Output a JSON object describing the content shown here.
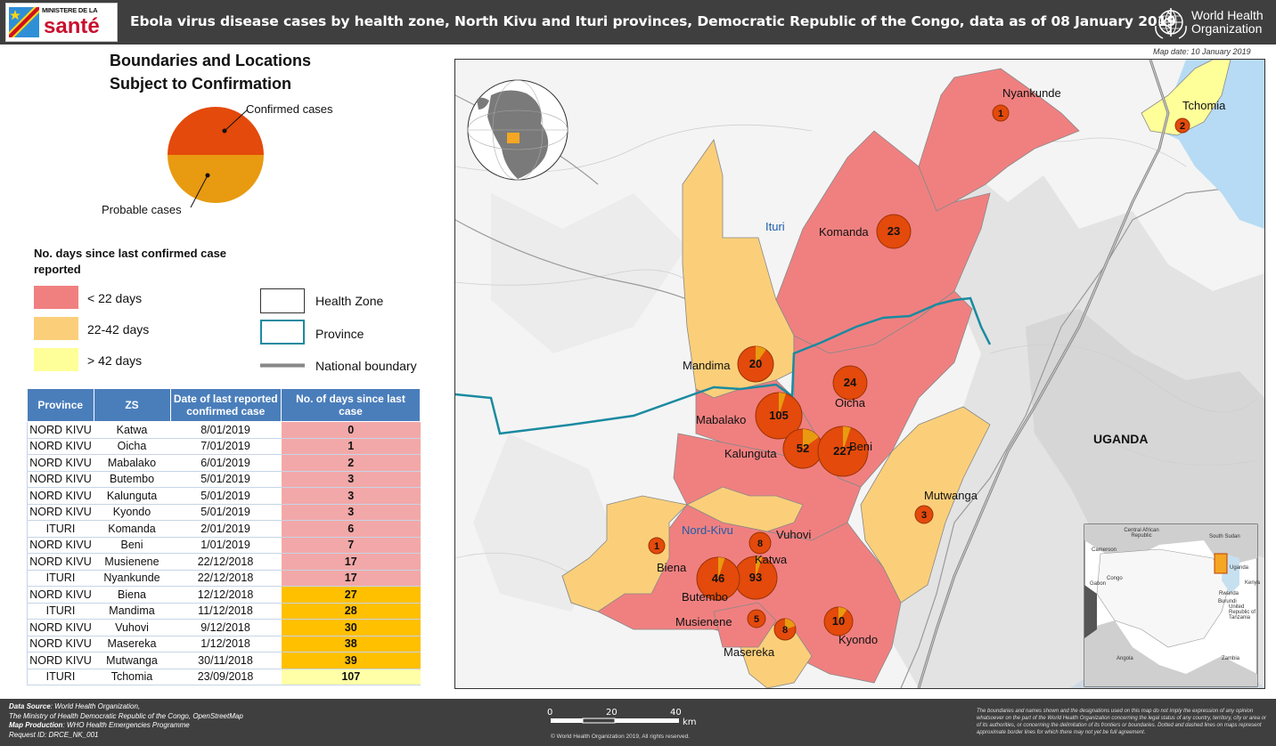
{
  "header": {
    "ministry_line": "MINISTERE DE LA",
    "ministry_word": "santé",
    "title": "Ebola virus disease cases by health zone, North Kivu and Ituri provinces, Democratic Republic of the Congo, data as of 08 January 2019",
    "who_line1": "World Health",
    "who_line2": "Organization"
  },
  "legend": {
    "title_line1": "Boundaries and Locations",
    "title_line2": "Subject to Confirmation",
    "pie_confirmed": "Confirmed cases",
    "pie_probable": "Probable cases",
    "days_title": "No. days since last confirmed case reported",
    "ranges": [
      {
        "label": "< 22 days",
        "color": "#f08080"
      },
      {
        "label": "22-42 days",
        "color": "#fbcf7a"
      },
      {
        "label": "> 42 days",
        "color": "#ffff99"
      }
    ],
    "health_zone": "Health Zone",
    "province": "Province",
    "national_boundary": "National boundary"
  },
  "table": {
    "headers": [
      "Province",
      "ZS",
      "Date of last reported confirmed case",
      "No. of days since last case"
    ],
    "rows": [
      {
        "province": "NORD KIVU",
        "zs": "Katwa",
        "date": "8/01/2019",
        "days": "0",
        "color": "#f2a8a8"
      },
      {
        "province": "NORD KIVU",
        "zs": "Oicha",
        "date": "7/01/2019",
        "days": "1",
        "color": "#f2a8a8"
      },
      {
        "province": "NORD KIVU",
        "zs": "Mabalako",
        "date": "6/01/2019",
        "days": "2",
        "color": "#f2a8a8"
      },
      {
        "province": "NORD KIVU",
        "zs": "Butembo",
        "date": "5/01/2019",
        "days": "3",
        "color": "#f2a8a8"
      },
      {
        "province": "NORD KIVU",
        "zs": "Kalunguta",
        "date": "5/01/2019",
        "days": "3",
        "color": "#f2a8a8"
      },
      {
        "province": "NORD KIVU",
        "zs": "Kyondo",
        "date": "5/01/2019",
        "days": "3",
        "color": "#f2a8a8"
      },
      {
        "province": "ITURI",
        "zs": "Komanda",
        "date": "2/01/2019",
        "days": "6",
        "color": "#f2a8a8"
      },
      {
        "province": "NORD KIVU",
        "zs": "Beni",
        "date": "1/01/2019",
        "days": "7",
        "color": "#f2a8a8"
      },
      {
        "province": "NORD KIVU",
        "zs": "Musienene",
        "date": "22/12/2018",
        "days": "17",
        "color": "#f2a8a8"
      },
      {
        "province": "ITURI",
        "zs": "Nyankunde",
        "date": "22/12/2018",
        "days": "17",
        "color": "#f2a8a8"
      },
      {
        "province": "NORD KIVU",
        "zs": "Biena",
        "date": "12/12/2018",
        "days": "27",
        "color": "#ffc000"
      },
      {
        "province": "ITURI",
        "zs": "Mandima",
        "date": "11/12/2018",
        "days": "28",
        "color": "#ffc000"
      },
      {
        "province": "NORD KIVU",
        "zs": "Vuhovi",
        "date": "9/12/2018",
        "days": "30",
        "color": "#ffc000"
      },
      {
        "province": "NORD KIVU",
        "zs": "Masereka",
        "date": "1/12/2018",
        "days": "38",
        "color": "#ffc000"
      },
      {
        "province": "NORD KIVU",
        "zs": "Mutwanga",
        "date": "30/11/2018",
        "days": "39",
        "color": "#ffc000"
      },
      {
        "province": "ITURI",
        "zs": "Tchomia",
        "date": "23/09/2018",
        "days": "107",
        "color": "#ffffa8"
      }
    ]
  },
  "map": {
    "map_date": "Map date: 10 January 2019",
    "province_labels": {
      "ituri": "Ituri",
      "nord_kivu": "Nord-Kivu",
      "uganda": "UGANDA"
    },
    "zones": [
      {
        "name": "Nyankunde",
        "total": "1"
      },
      {
        "name": "Tchomia",
        "total": "2"
      },
      {
        "name": "Komanda",
        "total": "23"
      },
      {
        "name": "Mandima",
        "total": "20"
      },
      {
        "name": "Oicha",
        "total": "24"
      },
      {
        "name": "Mabalako",
        "total": "105"
      },
      {
        "name": "Kalunguta",
        "total": "52"
      },
      {
        "name": "Beni",
        "total": "227"
      },
      {
        "name": "Mutwanga",
        "total": "3"
      },
      {
        "name": "Vuhovi",
        "total": "8"
      },
      {
        "name": "Katwa",
        "total": "93"
      },
      {
        "name": "Biena",
        "total": "1"
      },
      {
        "name": "Butembo",
        "total": "46"
      },
      {
        "name": "Musienene",
        "total": "5"
      },
      {
        "name": "Masereka",
        "total": "8"
      },
      {
        "name": "Kyondo",
        "total": "10"
      }
    ],
    "inset_labels": [
      "Central African Republic",
      "South Sudan",
      "Cameroon",
      "Congo",
      "Gabon",
      "Uganda",
      "Kenya",
      "Rwanda",
      "Burundi",
      "United Republic of Tanzania",
      "Angola",
      "Zambia"
    ]
  },
  "footer": {
    "source_label": "Data Source",
    "source_text": ": World Health Organization,",
    "source_line2": "The Ministry of Health Democratic Republic of the Congo, OpenStreetMap",
    "production_label": "Map Production",
    "production_text": ": WHO Health Emergencies Programme",
    "request_id": "Request ID: DRCE_NK_001",
    "scale_0": "0",
    "scale_20": "20",
    "scale_40": "40",
    "scale_unit": "km",
    "copyright": "© World Health Organization 2019, All rights reserved.",
    "disclaimer": "The boundaries and names shown and the designations used on this map do not imply the expression of any opinion whatsoever on the part of the World Health Organization concerning the legal status of any country, territory, city or area or of its authorities, or concerning the delimitation of its frontiers or boundaries. Dotted and dashed lines on maps represent approximate border lines for which there may not yet be full agreement."
  }
}
